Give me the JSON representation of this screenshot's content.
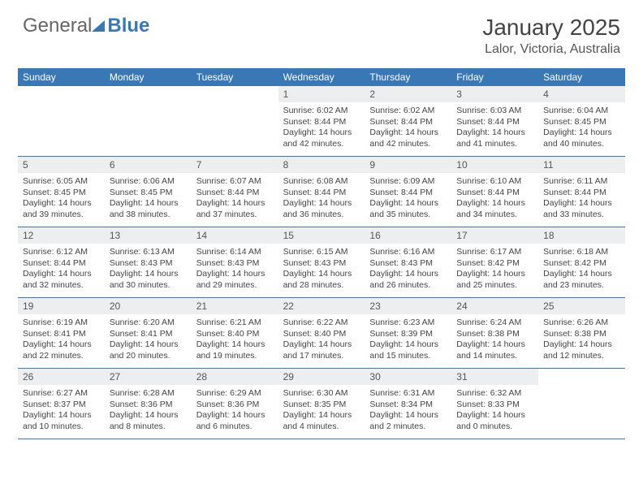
{
  "logo": {
    "part1": "General",
    "part2": "Blue"
  },
  "title": "January 2025",
  "location": "Lalor, Victoria, Australia",
  "header_bg": "#3a78b5",
  "daynum_bg": "#eceef0",
  "day_headers": [
    "Sunday",
    "Monday",
    "Tuesday",
    "Wednesday",
    "Thursday",
    "Friday",
    "Saturday"
  ],
  "weeks": [
    [
      null,
      null,
      null,
      {
        "n": "1",
        "sunrise": "6:02 AM",
        "sunset": "8:44 PM",
        "daylight": "14 hours and 42 minutes."
      },
      {
        "n": "2",
        "sunrise": "6:02 AM",
        "sunset": "8:44 PM",
        "daylight": "14 hours and 42 minutes."
      },
      {
        "n": "3",
        "sunrise": "6:03 AM",
        "sunset": "8:44 PM",
        "daylight": "14 hours and 41 minutes."
      },
      {
        "n": "4",
        "sunrise": "6:04 AM",
        "sunset": "8:45 PM",
        "daylight": "14 hours and 40 minutes."
      }
    ],
    [
      {
        "n": "5",
        "sunrise": "6:05 AM",
        "sunset": "8:45 PM",
        "daylight": "14 hours and 39 minutes."
      },
      {
        "n": "6",
        "sunrise": "6:06 AM",
        "sunset": "8:45 PM",
        "daylight": "14 hours and 38 minutes."
      },
      {
        "n": "7",
        "sunrise": "6:07 AM",
        "sunset": "8:44 PM",
        "daylight": "14 hours and 37 minutes."
      },
      {
        "n": "8",
        "sunrise": "6:08 AM",
        "sunset": "8:44 PM",
        "daylight": "14 hours and 36 minutes."
      },
      {
        "n": "9",
        "sunrise": "6:09 AM",
        "sunset": "8:44 PM",
        "daylight": "14 hours and 35 minutes."
      },
      {
        "n": "10",
        "sunrise": "6:10 AM",
        "sunset": "8:44 PM",
        "daylight": "14 hours and 34 minutes."
      },
      {
        "n": "11",
        "sunrise": "6:11 AM",
        "sunset": "8:44 PM",
        "daylight": "14 hours and 33 minutes."
      }
    ],
    [
      {
        "n": "12",
        "sunrise": "6:12 AM",
        "sunset": "8:44 PM",
        "daylight": "14 hours and 32 minutes."
      },
      {
        "n": "13",
        "sunrise": "6:13 AM",
        "sunset": "8:43 PM",
        "daylight": "14 hours and 30 minutes."
      },
      {
        "n": "14",
        "sunrise": "6:14 AM",
        "sunset": "8:43 PM",
        "daylight": "14 hours and 29 minutes."
      },
      {
        "n": "15",
        "sunrise": "6:15 AM",
        "sunset": "8:43 PM",
        "daylight": "14 hours and 28 minutes."
      },
      {
        "n": "16",
        "sunrise": "6:16 AM",
        "sunset": "8:43 PM",
        "daylight": "14 hours and 26 minutes."
      },
      {
        "n": "17",
        "sunrise": "6:17 AM",
        "sunset": "8:42 PM",
        "daylight": "14 hours and 25 minutes."
      },
      {
        "n": "18",
        "sunrise": "6:18 AM",
        "sunset": "8:42 PM",
        "daylight": "14 hours and 23 minutes."
      }
    ],
    [
      {
        "n": "19",
        "sunrise": "6:19 AM",
        "sunset": "8:41 PM",
        "daylight": "14 hours and 22 minutes."
      },
      {
        "n": "20",
        "sunrise": "6:20 AM",
        "sunset": "8:41 PM",
        "daylight": "14 hours and 20 minutes."
      },
      {
        "n": "21",
        "sunrise": "6:21 AM",
        "sunset": "8:40 PM",
        "daylight": "14 hours and 19 minutes."
      },
      {
        "n": "22",
        "sunrise": "6:22 AM",
        "sunset": "8:40 PM",
        "daylight": "14 hours and 17 minutes."
      },
      {
        "n": "23",
        "sunrise": "6:23 AM",
        "sunset": "8:39 PM",
        "daylight": "14 hours and 15 minutes."
      },
      {
        "n": "24",
        "sunrise": "6:24 AM",
        "sunset": "8:38 PM",
        "daylight": "14 hours and 14 minutes."
      },
      {
        "n": "25",
        "sunrise": "6:26 AM",
        "sunset": "8:38 PM",
        "daylight": "14 hours and 12 minutes."
      }
    ],
    [
      {
        "n": "26",
        "sunrise": "6:27 AM",
        "sunset": "8:37 PM",
        "daylight": "14 hours and 10 minutes."
      },
      {
        "n": "27",
        "sunrise": "6:28 AM",
        "sunset": "8:36 PM",
        "daylight": "14 hours and 8 minutes."
      },
      {
        "n": "28",
        "sunrise": "6:29 AM",
        "sunset": "8:36 PM",
        "daylight": "14 hours and 6 minutes."
      },
      {
        "n": "29",
        "sunrise": "6:30 AM",
        "sunset": "8:35 PM",
        "daylight": "14 hours and 4 minutes."
      },
      {
        "n": "30",
        "sunrise": "6:31 AM",
        "sunset": "8:34 PM",
        "daylight": "14 hours and 2 minutes."
      },
      {
        "n": "31",
        "sunrise": "6:32 AM",
        "sunset": "8:33 PM",
        "daylight": "14 hours and 0 minutes."
      },
      null
    ]
  ],
  "labels": {
    "sunrise": "Sunrise:",
    "sunset": "Sunset:",
    "daylight": "Daylight:"
  }
}
